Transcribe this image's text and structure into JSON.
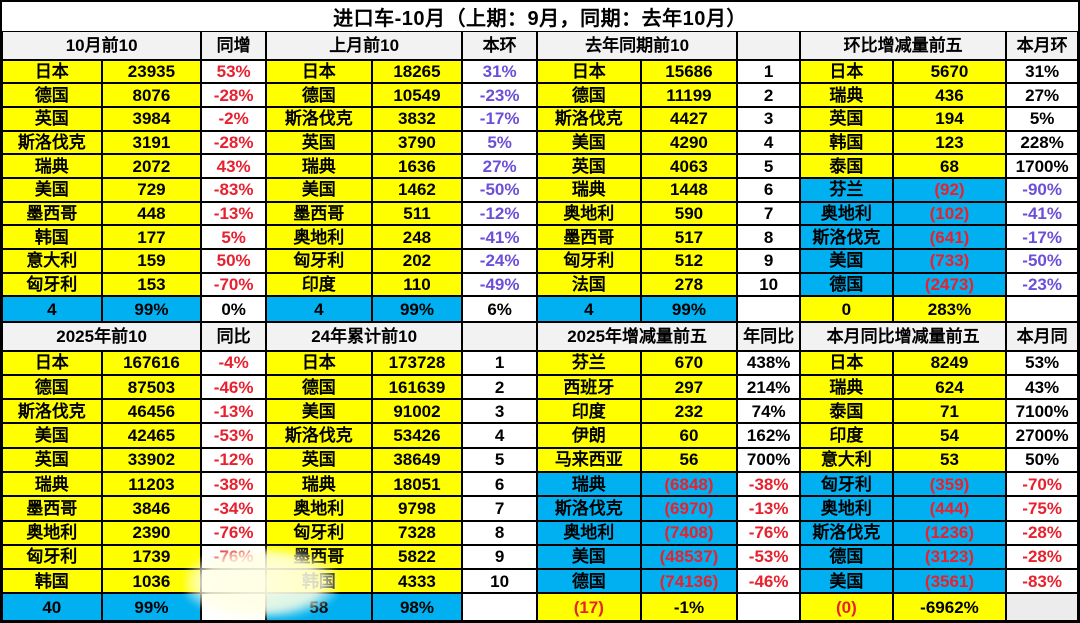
{
  "colors": {
    "cell_yellow": "#FFFF00",
    "cell_cyan": "#00B0F0",
    "negative_red": "#E8212E",
    "ratio_purple": "#6C4FD8",
    "header_gray": "#F2F2F2"
  },
  "chart_data": {
    "type": "table",
    "title": "进口车-10月（上期：9月，同期：去年10月）",
    "sections": [
      {
        "name": "october-top10",
        "header": "10月前10",
        "pct_header": "同增",
        "pct_rule": "red",
        "neg_from": 10,
        "footer_bg": "cyan",
        "rows": [
          [
            "日本",
            "23935",
            "53%"
          ],
          [
            "德国",
            "8076",
            "-28%"
          ],
          [
            "英国",
            "3984",
            "-2%"
          ],
          [
            "斯洛伐克",
            "3191",
            "-28%"
          ],
          [
            "瑞典",
            "2072",
            "43%"
          ],
          [
            "美国",
            "729",
            "-83%"
          ],
          [
            "墨西哥",
            "448",
            "-13%"
          ],
          [
            "韩国",
            "177",
            "5%"
          ],
          [
            "意大利",
            "159",
            "50%"
          ],
          [
            "匈牙利",
            "153",
            "-70%"
          ]
        ],
        "footer": [
          "4",
          "99%",
          "0%"
        ]
      },
      {
        "name": "last-month-top10",
        "header": "上月前10",
        "pct_header": "本环",
        "pct_rule": "purple",
        "neg_from": 10,
        "footer_bg": "cyan",
        "rows": [
          [
            "日本",
            "18265",
            "31%"
          ],
          [
            "德国",
            "10549",
            "-23%"
          ],
          [
            "斯洛伐克",
            "3832",
            "-17%"
          ],
          [
            "英国",
            "3790",
            "5%"
          ],
          [
            "瑞典",
            "1636",
            "27%"
          ],
          [
            "美国",
            "1462",
            "-50%"
          ],
          [
            "墨西哥",
            "511",
            "-12%"
          ],
          [
            "奥地利",
            "248",
            "-41%"
          ],
          [
            "匈牙利",
            "202",
            "-24%"
          ],
          [
            "印度",
            "110",
            "-49%"
          ]
        ],
        "footer": [
          "4",
          "99%",
          "6%"
        ]
      },
      {
        "name": "last-year-same-period-top10",
        "header": "去年同期前10",
        "pct_header": "",
        "pct_rule": "rank",
        "neg_from": 10,
        "footer_bg": "cyan",
        "rows": [
          [
            "日本",
            "15686",
            "1"
          ],
          [
            "德国",
            "11199",
            "2"
          ],
          [
            "斯洛伐克",
            "4427",
            "3"
          ],
          [
            "美国",
            "4290",
            "4"
          ],
          [
            "英国",
            "4063",
            "5"
          ],
          [
            "瑞典",
            "1448",
            "6"
          ],
          [
            "奥地利",
            "590",
            "7"
          ],
          [
            "墨西哥",
            "517",
            "8"
          ],
          [
            "匈牙利",
            "512",
            "9"
          ],
          [
            "法国",
            "278",
            "10"
          ]
        ],
        "footer": [
          "4",
          "99%",
          ""
        ]
      },
      {
        "name": "mom-change-top5",
        "header": "环比增减量前五",
        "pct_header": "本月环",
        "pct_rule": "neg-purple",
        "neg_from": 5,
        "footer_bg": "yellow",
        "rows": [
          [
            "日本",
            "5670",
            "31%"
          ],
          [
            "瑞典",
            "436",
            "27%"
          ],
          [
            "英国",
            "194",
            "5%"
          ],
          [
            "韩国",
            "123",
            "228%"
          ],
          [
            "泰国",
            "68",
            "1700%"
          ],
          [
            "芬兰",
            "(92)",
            "-90%"
          ],
          [
            "奥地利",
            "(102)",
            "-41%"
          ],
          [
            "斯洛伐克",
            "(641)",
            "-17%"
          ],
          [
            "美国",
            "(733)",
            "-50%"
          ],
          [
            "德国",
            "(2473)",
            "-23%"
          ]
        ],
        "footer": [
          "0",
          "283%",
          ""
        ]
      },
      {
        "name": "ytd-2025-top10",
        "header": "2025年前10",
        "pct_header": "同比",
        "pct_rule": "red",
        "neg_from": 10,
        "footer_bg": "cyan",
        "rows": [
          [
            "日本",
            "167616",
            "-4%"
          ],
          [
            "德国",
            "87503",
            "-46%"
          ],
          [
            "斯洛伐克",
            "46456",
            "-13%"
          ],
          [
            "美国",
            "42465",
            "-53%"
          ],
          [
            "英国",
            "33902",
            "-12%"
          ],
          [
            "瑞典",
            "11203",
            "-38%"
          ],
          [
            "墨西哥",
            "3846",
            "-34%"
          ],
          [
            "奥地利",
            "2390",
            "-76%"
          ],
          [
            "匈牙利",
            "1739",
            "-76%"
          ],
          [
            "韩国",
            "1036",
            ""
          ]
        ],
        "footer": [
          "40",
          "99%",
          ""
        ]
      },
      {
        "name": "cumulative-2024-top10",
        "header": "24年累计前10",
        "pct_header": "",
        "pct_rule": "rank",
        "neg_from": 10,
        "footer_bg": "cyan",
        "rows": [
          [
            "日本",
            "173728",
            "1"
          ],
          [
            "德国",
            "161639",
            "2"
          ],
          [
            "美国",
            "91002",
            "3"
          ],
          [
            "斯洛伐克",
            "53426",
            "4"
          ],
          [
            "英国",
            "38649",
            "5"
          ],
          [
            "瑞典",
            "18051",
            "6"
          ],
          [
            "奥地利",
            "9798",
            "7"
          ],
          [
            "匈牙利",
            "7328",
            "8"
          ],
          [
            "墨西哥",
            "5822",
            "9"
          ],
          [
            "韩国",
            "4333",
            "10"
          ]
        ],
        "footer": [
          "58",
          "98%",
          ""
        ]
      },
      {
        "name": "yearly-change-top5",
        "header": "2025年增减量前五",
        "pct_header": "年同比",
        "pct_rule": "neg-red",
        "neg_from": 5,
        "footer_bg": "yellow",
        "rows": [
          [
            "芬兰",
            "670",
            "438%"
          ],
          [
            "西班牙",
            "297",
            "214%"
          ],
          [
            "印度",
            "232",
            "74%"
          ],
          [
            "伊朗",
            "60",
            "162%"
          ],
          [
            "马来西亚",
            "56",
            "700%"
          ],
          [
            "瑞典",
            "(6848)",
            "-38%"
          ],
          [
            "斯洛伐克",
            "(6970)",
            "-13%"
          ],
          [
            "奥地利",
            "(7408)",
            "-76%"
          ],
          [
            "美国",
            "(48537)",
            "-53%"
          ],
          [
            "德国",
            "(74136)",
            "-46%"
          ]
        ],
        "footer": [
          "(17)",
          "-1%",
          ""
        ]
      },
      {
        "name": "monthly-yoy-change-top5",
        "header": "本月同比增减量前五",
        "pct_header": "本月同",
        "pct_rule": "neg-red",
        "neg_from": 5,
        "footer_bg": "yellow",
        "rows": [
          [
            "日本",
            "8249",
            "53%"
          ],
          [
            "瑞典",
            "624",
            "43%"
          ],
          [
            "泰国",
            "71",
            "7100%"
          ],
          [
            "印度",
            "54",
            "2700%"
          ],
          [
            "意大利",
            "53",
            "50%"
          ],
          [
            "匈牙利",
            "(359)",
            "-70%"
          ],
          [
            "奥地利",
            "(444)",
            "-75%"
          ],
          [
            "斯洛伐克",
            "(1236)",
            "-28%"
          ],
          [
            "德国",
            "(3123)",
            "-28%"
          ],
          [
            "美国",
            "(3561)",
            "-83%"
          ]
        ],
        "footer": [
          "(0)",
          "-6962%",
          ""
        ]
      }
    ]
  }
}
